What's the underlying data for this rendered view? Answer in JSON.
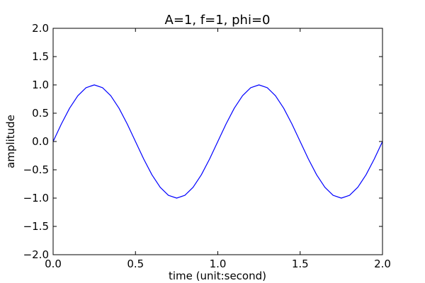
{
  "chart_data": {
    "type": "line",
    "title": "A=1, f=1, phi=0",
    "xlabel": "time (unit:second)",
    "ylabel": "amplitude",
    "xlim": [
      0,
      2
    ],
    "ylim": [
      -2,
      2
    ],
    "grid": false,
    "x_ticks": [
      0.0,
      0.5,
      1.0,
      1.5,
      2.0
    ],
    "x_tick_labels": [
      "0.0",
      "0.5",
      "1.0",
      "1.5",
      "2.0"
    ],
    "y_ticks": [
      -2.0,
      -1.5,
      -1.0,
      -0.5,
      0.0,
      0.5,
      1.0,
      1.5,
      2.0
    ],
    "y_tick_labels": [
      "−2.0",
      "−1.5",
      "−1.0",
      "−0.5",
      "0.0",
      "0.5",
      "1.0",
      "1.5",
      "2.0"
    ],
    "series": [
      {
        "color": "#0000ff",
        "x": [
          0.0,
          0.05,
          0.1,
          0.15,
          0.2,
          0.25,
          0.3,
          0.35,
          0.4,
          0.45,
          0.5,
          0.55,
          0.6,
          0.65,
          0.7,
          0.75,
          0.8,
          0.85,
          0.9,
          0.95,
          1.0,
          1.05,
          1.1,
          1.15,
          1.2,
          1.25,
          1.3,
          1.35,
          1.4,
          1.45,
          1.5,
          1.55,
          1.6,
          1.65,
          1.7,
          1.75,
          1.8,
          1.85,
          1.9,
          1.95,
          2.0
        ],
        "y": [
          0.0,
          0.309,
          0.588,
          0.809,
          0.951,
          1.0,
          0.951,
          0.809,
          0.588,
          0.309,
          0.0,
          -0.309,
          -0.588,
          -0.809,
          -0.951,
          -1.0,
          -0.951,
          -0.809,
          -0.588,
          -0.309,
          0.0,
          0.309,
          0.588,
          0.809,
          0.951,
          1.0,
          0.951,
          0.809,
          0.588,
          0.309,
          0.0,
          -0.309,
          -0.588,
          -0.809,
          -0.951,
          -1.0,
          -0.951,
          -0.809,
          -0.588,
          -0.309,
          0.0
        ]
      }
    ]
  }
}
